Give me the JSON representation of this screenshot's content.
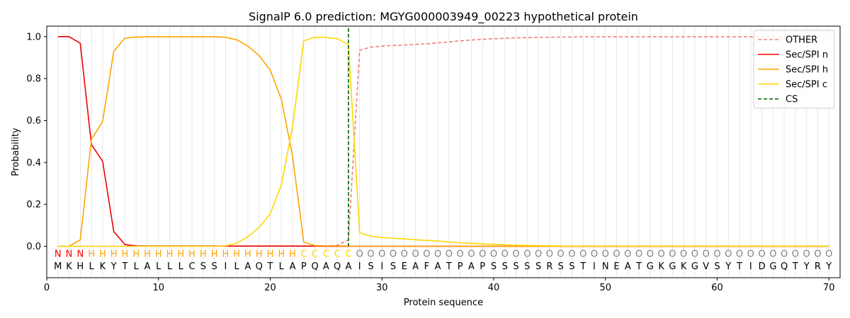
{
  "chart_data": {
    "type": "line",
    "title": "SignalP 6.0 prediction: MGYG000003949_00223 hypothetical protein",
    "xlabel": "Protein sequence",
    "ylabel": "Probability",
    "xlim": [
      0,
      71
    ],
    "ylim": [
      -0.15,
      1.05
    ],
    "xticks": [
      0,
      10,
      20,
      30,
      40,
      50,
      60,
      70
    ],
    "yticks": [
      0.0,
      0.2,
      0.4,
      0.6,
      0.8,
      1.0
    ],
    "grid": "vertical lines at each residue",
    "legend_position": "top-right",
    "sequence": [
      "M",
      "K",
      "H",
      "L",
      "K",
      "Y",
      "T",
      "L",
      "A",
      "L",
      "L",
      "L",
      "C",
      "S",
      "S",
      "I",
      "L",
      "A",
      "Q",
      "T",
      "L",
      "A",
      "P",
      "Q",
      "A",
      "Q",
      "A",
      "I",
      "S",
      "I",
      "S",
      "E",
      "A",
      "F",
      "A",
      "T",
      "P",
      "A",
      "P",
      "S",
      "S",
      "S",
      "S",
      "S",
      "R",
      "S",
      "S",
      "T",
      "I",
      "N",
      "E",
      "A",
      "T",
      "G",
      "K",
      "G",
      "K",
      "G",
      "V",
      "S",
      "Y",
      "T",
      "I",
      "D",
      "G",
      "Q",
      "T",
      "Y",
      "R",
      "Y"
    ],
    "labels": [
      "N",
      "N",
      "N",
      "H",
      "H",
      "H",
      "H",
      "H",
      "H",
      "H",
      "H",
      "H",
      "H",
      "H",
      "H",
      "H",
      "H",
      "H",
      "H",
      "H",
      "H",
      "H",
      "C",
      "C",
      "C",
      "C",
      "C",
      "O",
      "O",
      "O",
      "O",
      "O",
      "O",
      "O",
      "O",
      "O",
      "O",
      "O",
      "O",
      "O",
      "O",
      "O",
      "O",
      "O",
      "O",
      "O",
      "O",
      "O",
      "O",
      "O",
      "O",
      "O",
      "O",
      "O",
      "O",
      "O",
      "O",
      "O",
      "O",
      "O",
      "O",
      "O",
      "O",
      "O",
      "O",
      "O",
      "O",
      "O",
      "O",
      "O"
    ],
    "label_colors": {
      "N": "#ff0000",
      "H": "#ffa500",
      "C": "#ffd700",
      "O": "#808080"
    },
    "cleavage_site": 27,
    "x": [
      1,
      2,
      3,
      4,
      5,
      6,
      7,
      8,
      9,
      10,
      11,
      12,
      13,
      14,
      15,
      16,
      17,
      18,
      19,
      20,
      21,
      22,
      23,
      24,
      25,
      26,
      27,
      28,
      29,
      30,
      31,
      32,
      33,
      34,
      35,
      36,
      37,
      38,
      39,
      40,
      41,
      42,
      43,
      44,
      45,
      46,
      47,
      48,
      49,
      50,
      51,
      52,
      53,
      54,
      55,
      56,
      57,
      58,
      59,
      60,
      61,
      62,
      63,
      64,
      65,
      66,
      67,
      68,
      69,
      70
    ],
    "series": [
      {
        "name": "OTHER",
        "color": "#f08080",
        "dash": true,
        "values": [
          0,
          0,
          0,
          0,
          0,
          0,
          0,
          0,
          0,
          0,
          0,
          0,
          0,
          0,
          0,
          0,
          0,
          0,
          0,
          0,
          0,
          0,
          0,
          0,
          0.001,
          0.005,
          0.03,
          0.935,
          0.95,
          0.955,
          0.958,
          0.96,
          0.963,
          0.966,
          0.97,
          0.975,
          0.98,
          0.984,
          0.987,
          0.99,
          0.992,
          0.994,
          0.995,
          0.996,
          0.997,
          0.998,
          0.998,
          0.999,
          0.999,
          0.999,
          0.999,
          0.999,
          0.999,
          0.999,
          0.999,
          0.999,
          0.999,
          0.999,
          0.999,
          0.999,
          0.999,
          0.999,
          0.999,
          0.999,
          0.999,
          0.999,
          0.999,
          0.999,
          0.999,
          0.999
        ]
      },
      {
        "name": "Sec/SPI n",
        "color": "#ee0000",
        "dash": false,
        "values": [
          1.0,
          1.0,
          0.968,
          0.485,
          0.405,
          0.07,
          0.008,
          0.002,
          0.001,
          0.001,
          0.001,
          0.001,
          0.001,
          0.001,
          0.001,
          0.001,
          0.001,
          0.001,
          0.001,
          0.001,
          0.001,
          0.001,
          0.001,
          0.001,
          0,
          0,
          0,
          0,
          0,
          0,
          0,
          0,
          0,
          0,
          0,
          0,
          0,
          0,
          0,
          0,
          0,
          0,
          0,
          0,
          0,
          0,
          0,
          0,
          0,
          0,
          0,
          0,
          0,
          0,
          0,
          0,
          0,
          0,
          0,
          0,
          0,
          0,
          0,
          0,
          0,
          0,
          0,
          0,
          0,
          0
        ]
      },
      {
        "name": "Sec/SPI h",
        "color": "#ffa500",
        "dash": false,
        "values": [
          0,
          0,
          0.03,
          0.51,
          0.595,
          0.93,
          0.993,
          0.998,
          0.999,
          0.999,
          0.999,
          0.999,
          0.999,
          0.999,
          0.999,
          0.997,
          0.985,
          0.955,
          0.91,
          0.84,
          0.7,
          0.43,
          0.02,
          0.003,
          0.002,
          0.002,
          0.001,
          0,
          0,
          0,
          0,
          0,
          0,
          0,
          0,
          0,
          0,
          0,
          0,
          0,
          0,
          0,
          0,
          0,
          0,
          0,
          0,
          0,
          0,
          0,
          0,
          0,
          0,
          0,
          0,
          0,
          0,
          0,
          0,
          0,
          0,
          0,
          0,
          0,
          0,
          0,
          0,
          0,
          0,
          0
        ]
      },
      {
        "name": "Sec/SPI c",
        "color": "#ffd700",
        "dash": false,
        "values": [
          0,
          0,
          0,
          0,
          0,
          0,
          0,
          0,
          0,
          0,
          0,
          0,
          0,
          0,
          0,
          0.002,
          0.015,
          0.045,
          0.09,
          0.155,
          0.295,
          0.57,
          0.98,
          0.997,
          0.996,
          0.99,
          0.962,
          0.065,
          0.048,
          0.042,
          0.038,
          0.035,
          0.031,
          0.028,
          0.025,
          0.021,
          0.017,
          0.014,
          0.011,
          0.009,
          0.007,
          0.005,
          0.004,
          0.003,
          0.002,
          0.001,
          0.001,
          0.001,
          0.001,
          0.001,
          0.001,
          0.001,
          0.001,
          0.001,
          0.001,
          0.001,
          0.001,
          0.001,
          0.001,
          0.001,
          0.001,
          0.001,
          0.001,
          0.001,
          0.001,
          0.001,
          0.001,
          0.001,
          0.001,
          0.001
        ]
      },
      {
        "name": "CS",
        "color": "#006400",
        "dash": true,
        "type": "vline"
      }
    ]
  }
}
